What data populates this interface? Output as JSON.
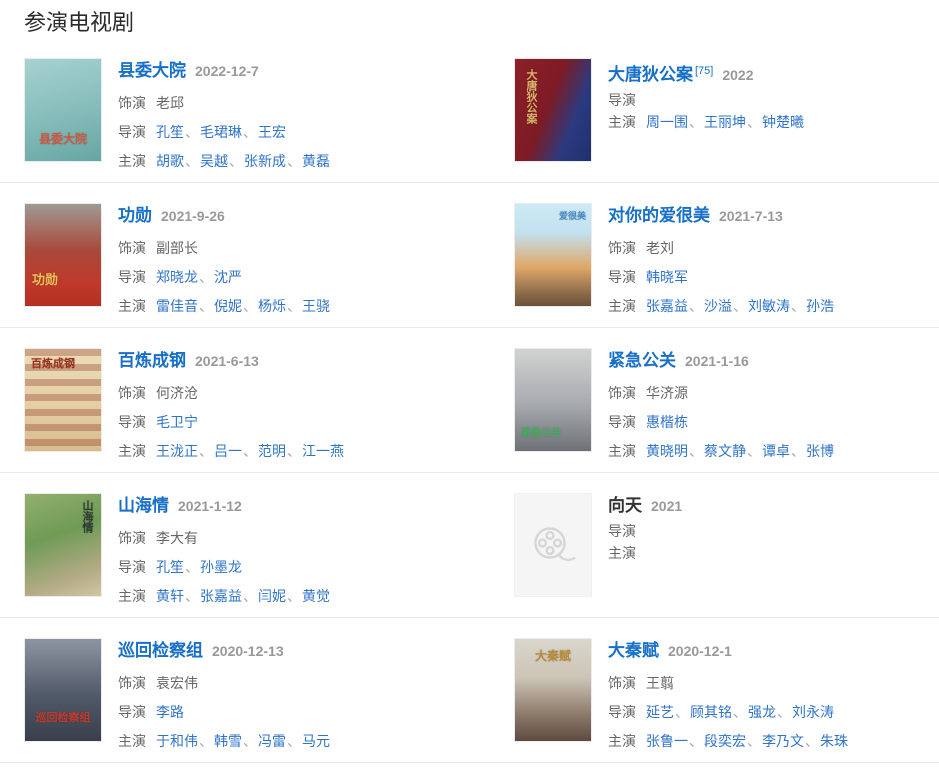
{
  "page": {
    "section_title": "参演电视剧"
  },
  "labels": {
    "role": "饰演",
    "director": "导演",
    "cast": "主演"
  },
  "colors": {
    "link_blue": "#176fc7",
    "title_blue": "#176fc7",
    "date_gray": "#999999",
    "text_gray": "#666666",
    "divider": "#e8e8e8",
    "placeholder_bg": "#f5f5f5",
    "placeholder_icon": "#d6d6d6"
  },
  "icons": {
    "placeholder": "film-reel-icon"
  },
  "entries": [
    {
      "title": "县委大院",
      "date": "2022-12-7",
      "role": "老邱",
      "directors": [
        "孔笙",
        "毛珺琳",
        "王宏"
      ],
      "cast": [
        "胡歌",
        "吴越",
        "张新成",
        "黄磊"
      ],
      "poster_label": "县委大院"
    },
    {
      "title": "大唐狄公案",
      "ref": "[75]",
      "date": "2022",
      "directors": [],
      "cast": [
        "周一围",
        "王丽坤",
        "钟楚曦"
      ],
      "poster_label": "大唐狄公案"
    },
    {
      "title": "功勋",
      "date": "2021-9-26",
      "role": "副部长",
      "directors": [
        "郑晓龙",
        "沈严"
      ],
      "cast": [
        "雷佳音",
        "倪妮",
        "杨烁",
        "王骁"
      ],
      "poster_label": "功勋"
    },
    {
      "title": "对你的爱很美",
      "date": "2021-7-13",
      "role": "老刘",
      "directors": [
        "韩晓军"
      ],
      "cast": [
        "张嘉益",
        "沙溢",
        "刘敏涛",
        "孙浩"
      ],
      "poster_label": "爱很美"
    },
    {
      "title": "百炼成钢",
      "date": "2021-6-13",
      "role": "何济沧",
      "directors": [
        "毛卫宁"
      ],
      "cast": [
        "王泷正",
        "吕一",
        "范明",
        "江一燕"
      ],
      "poster_label": "百炼成钢"
    },
    {
      "title": "紧急公关",
      "date": "2021-1-16",
      "role": "华济源",
      "directors": [
        "惠楷栋"
      ],
      "cast": [
        "黄晓明",
        "蔡文静",
        "谭卓",
        "张博"
      ],
      "poster_label": "紧急公关"
    },
    {
      "title": "山海情",
      "date": "2021-1-12",
      "role": "李大有",
      "directors": [
        "孔笙",
        "孙墨龙"
      ],
      "cast": [
        "黄轩",
        "张嘉益",
        "闫妮",
        "黄觉"
      ],
      "poster_label": "山海情"
    },
    {
      "title": "向天",
      "date": "2021",
      "directors": [],
      "cast": [],
      "poster_label": ""
    },
    {
      "title": "巡回检察组",
      "date": "2020-12-13",
      "role": "袁宏伟",
      "directors": [
        "李路"
      ],
      "cast": [
        "于和伟",
        "韩雪",
        "冯雷",
        "马元"
      ],
      "poster_label": "巡回检察组"
    },
    {
      "title": "大秦赋",
      "date": "2020-12-1",
      "role": "王翦",
      "directors": [
        "延艺",
        "顾其铭",
        "强龙",
        "刘永涛"
      ],
      "cast": [
        "张鲁一",
        "段奕宏",
        "李乃文",
        "朱珠"
      ],
      "poster_label": "大秦赋"
    }
  ]
}
